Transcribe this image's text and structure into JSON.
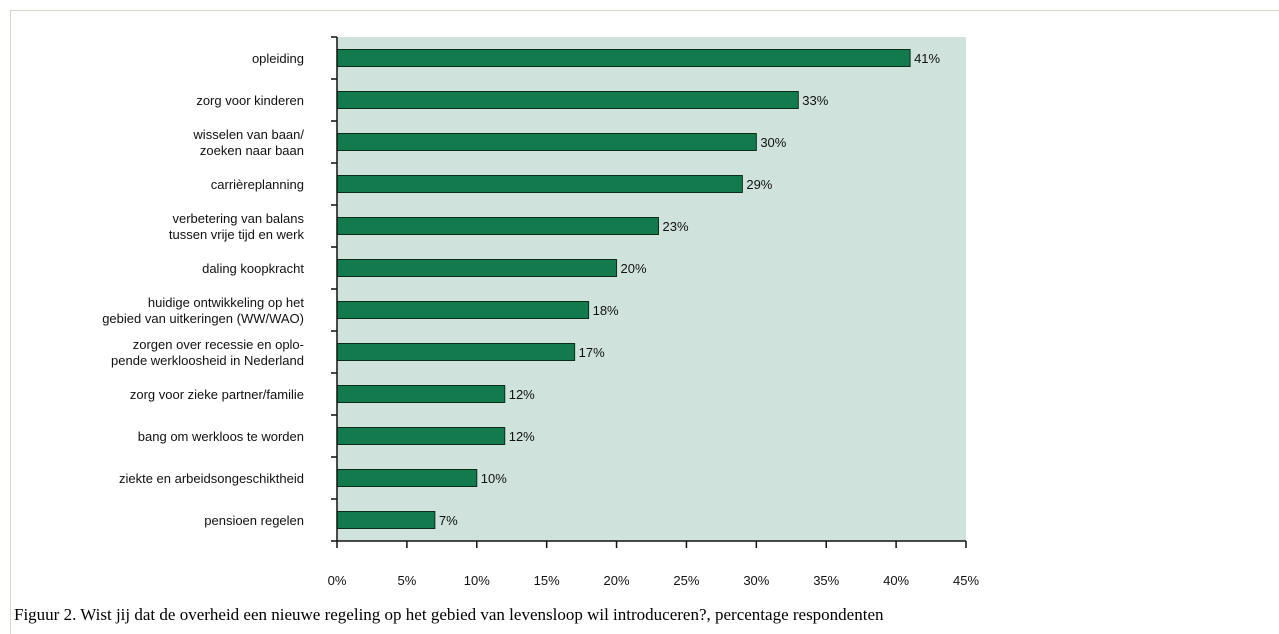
{
  "caption": "Figuur 2. Wist jij dat de overheid een nieuwe regeling op het gebied van levensloop wil introduceren?, percentage respondenten",
  "chart_data": {
    "type": "bar",
    "orientation": "horizontal",
    "categories": [
      [
        "opleiding"
      ],
      [
        "zorg voor kinderen"
      ],
      [
        "wisselen van baan/",
        "zoeken naar baan"
      ],
      [
        "carrièreplanning"
      ],
      [
        "verbetering van balans",
        "tussen vrije tijd en werk"
      ],
      [
        "daling koopkracht"
      ],
      [
        "huidige ontwikkeling op het",
        "gebied van uitkeringen (WW/WAO)"
      ],
      [
        "zorgen over recessie en oplo-",
        "pende werkloosheid in Nederland"
      ],
      [
        "zorg voor zieke partner/familie"
      ],
      [
        "bang om werkloos te worden"
      ],
      [
        "ziekte en arbeidsongeschiktheid"
      ],
      [
        "pensioen regelen"
      ]
    ],
    "values": [
      41,
      33,
      30,
      29,
      23,
      20,
      18,
      17,
      12,
      12,
      10,
      7
    ],
    "value_labels": [
      "41%",
      "33%",
      "30%",
      "29%",
      "23%",
      "20%",
      "18%",
      "17%",
      "12%",
      "12%",
      "10%",
      "7%"
    ],
    "xlim": [
      0,
      45
    ],
    "xticks": [
      0,
      5,
      10,
      15,
      20,
      25,
      30,
      35,
      40,
      45
    ],
    "xtick_labels": [
      "0%",
      "5%",
      "10%",
      "15%",
      "20%",
      "25%",
      "30%",
      "35%",
      "40%",
      "45%"
    ],
    "title": "",
    "xlabel": "",
    "ylabel": "",
    "grid": false,
    "colors": {
      "bar": "#137a4e",
      "bar_border": "#0a2e1a",
      "plot_background": "#cfe3dc",
      "axis": "#111111"
    }
  }
}
